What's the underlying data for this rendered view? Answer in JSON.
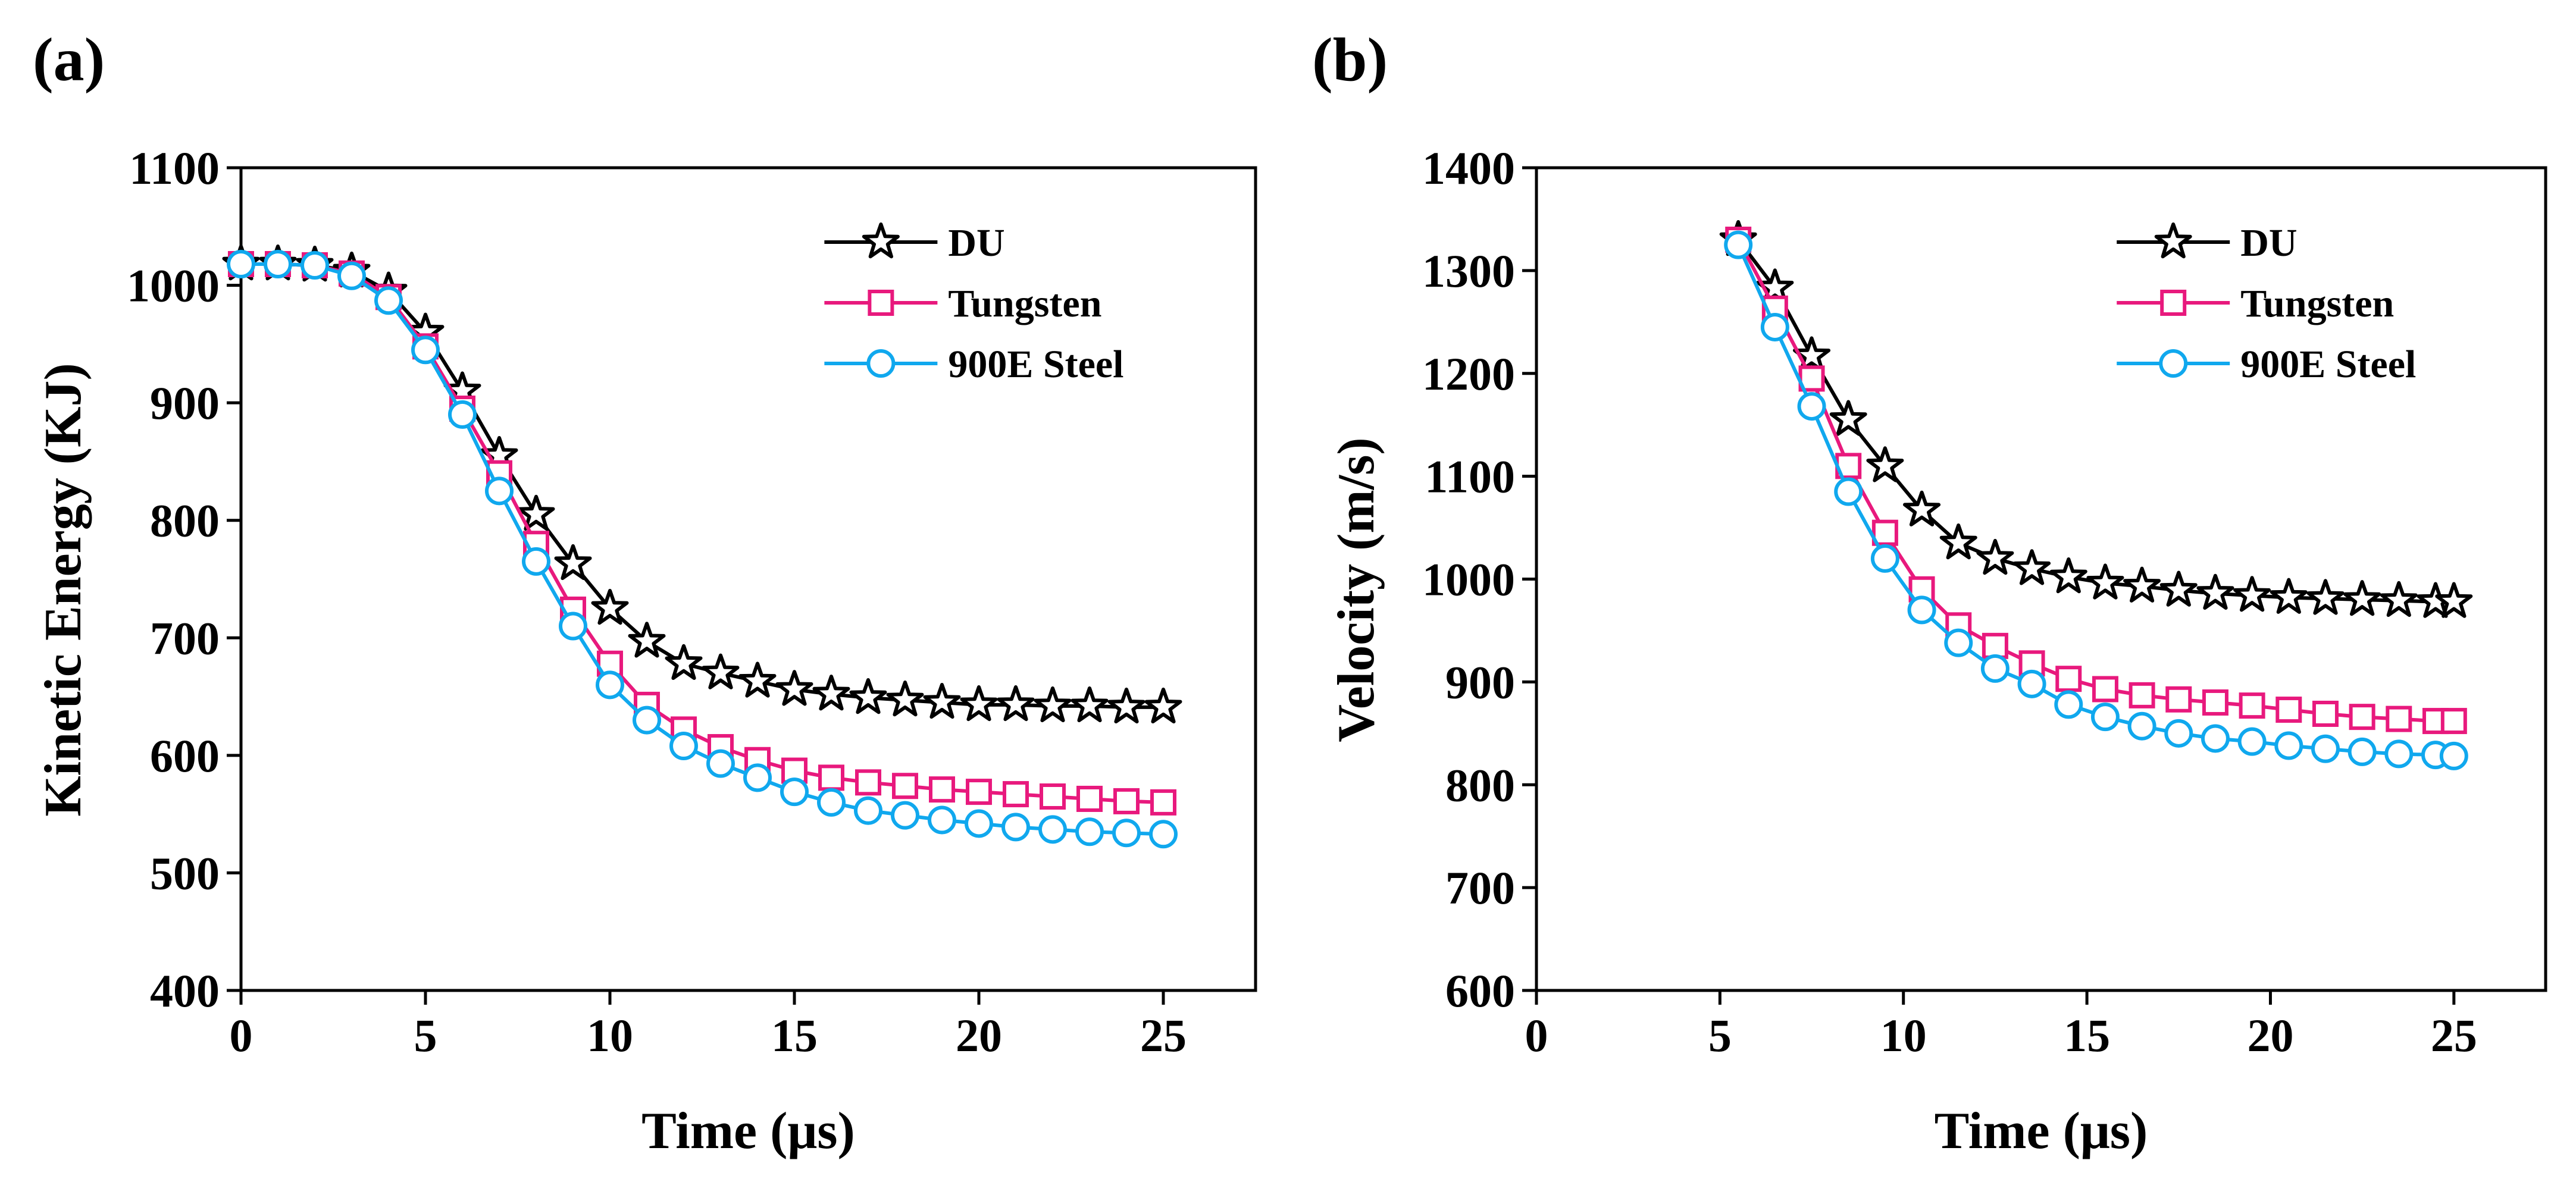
{
  "chart_data": [
    {
      "type": "line",
      "panel_label": "(a)",
      "xlabel": "Time (μs)",
      "ylabel": "Kinetic Energy (KJ)",
      "xlim": [
        0,
        27.5
      ],
      "ylim": [
        400,
        1100
      ],
      "xticks": [
        0,
        5,
        10,
        15,
        20,
        25
      ],
      "yticks": [
        400,
        500,
        600,
        700,
        800,
        900,
        1000,
        1100
      ],
      "grid": false,
      "legend_position": "top-right",
      "x": [
        0,
        1,
        2,
        3,
        4,
        5,
        6,
        7,
        8,
        9,
        10,
        11,
        12,
        13,
        14,
        15,
        16,
        17,
        18,
        19,
        20,
        21,
        22,
        23,
        24,
        25
      ],
      "series": [
        {
          "name": "DU",
          "color": "#000000",
          "marker": "star",
          "values": [
            1018,
            1018,
            1017,
            1012,
            995,
            960,
            910,
            855,
            805,
            763,
            725,
            697,
            678,
            670,
            663,
            656,
            652,
            649,
            647,
            645,
            643,
            643,
            642,
            642,
            641,
            641
          ]
        },
        {
          "name": "Tungsten",
          "color": "#e8197d",
          "marker": "square",
          "values": [
            1018,
            1018,
            1017,
            1010,
            990,
            948,
            895,
            840,
            780,
            724,
            678,
            643,
            622,
            607,
            596,
            587,
            581,
            577,
            574,
            571,
            569,
            567,
            565,
            563,
            561,
            560
          ]
        },
        {
          "name": "900E Steel",
          "color": "#10a8ee",
          "marker": "circle",
          "values": [
            1018,
            1018,
            1017,
            1008,
            987,
            945,
            890,
            825,
            765,
            710,
            660,
            630,
            608,
            593,
            581,
            569,
            560,
            553,
            549,
            545,
            542,
            539,
            537,
            535,
            534,
            533
          ]
        }
      ]
    },
    {
      "type": "line",
      "panel_label": "(b)",
      "xlabel": "Time (μs)",
      "ylabel": "Velocity (m/s)",
      "xlim": [
        0,
        27.5
      ],
      "ylim": [
        600,
        1400
      ],
      "xticks": [
        0,
        5,
        10,
        15,
        20,
        25
      ],
      "yticks": [
        600,
        700,
        800,
        900,
        1000,
        1100,
        1200,
        1300,
        1400
      ],
      "grid": false,
      "legend_position": "top-right",
      "x": [
        5.5,
        6.5,
        7.5,
        8.5,
        9.5,
        10.5,
        11.5,
        12.5,
        13.5,
        14.5,
        15.5,
        16.5,
        17.5,
        18.5,
        19.5,
        20.5,
        21.5,
        22.5,
        23.5,
        24.5,
        25
      ],
      "series": [
        {
          "name": "DU",
          "color": "#000000",
          "marker": "star",
          "values": [
            1330,
            1283,
            1217,
            1155,
            1110,
            1067,
            1035,
            1020,
            1010,
            1002,
            996,
            993,
            989,
            986,
            984,
            982,
            981,
            980,
            979,
            978,
            978
          ]
        },
        {
          "name": "Tungsten",
          "color": "#e8197d",
          "marker": "square",
          "values": [
            1330,
            1263,
            1195,
            1110,
            1045,
            990,
            955,
            935,
            918,
            903,
            893,
            887,
            883,
            880,
            877,
            873,
            869,
            866,
            864,
            862,
            862
          ]
        },
        {
          "name": "900E Steel",
          "color": "#10a8ee",
          "marker": "circle",
          "values": [
            1325,
            1245,
            1168,
            1085,
            1020,
            970,
            938,
            913,
            898,
            878,
            866,
            857,
            850,
            845,
            842,
            838,
            835,
            832,
            830,
            829,
            828
          ]
        }
      ]
    }
  ]
}
